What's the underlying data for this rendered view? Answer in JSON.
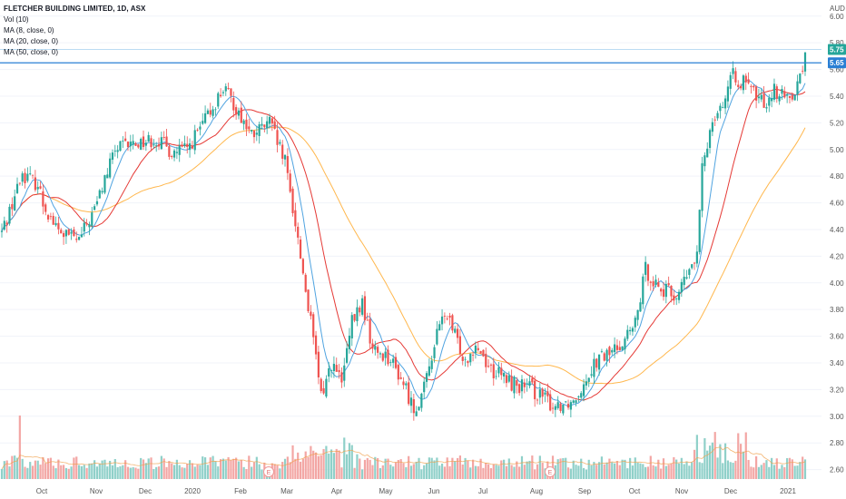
{
  "legend": {
    "title": "FLETCHER BUILDING LIMITED, 1D, ASX",
    "volume": "Vol (10)",
    "ma_fast": "MA (8, close, 0)",
    "ma_mid": "MA (20, close, 0)",
    "ma_slow": "MA (50, close, 0)"
  },
  "currency": "AUD",
  "last_price_tag": "5.75",
  "prev_price_tag": "5.65",
  "colors": {
    "up": "#26a69a",
    "down": "#ef5350",
    "ma_fast": "#4fa3e0",
    "ma_mid": "#e53935",
    "ma_slow": "#ffb74d",
    "vol_up": "#8fd0c9",
    "vol_down": "#f3a6a4",
    "price_line": "#2a7fd4",
    "grid": "#f0f3fa"
  },
  "event_marker": "E",
  "chart_data": {
    "type": "candlestick",
    "y_axis": {
      "ticks": [
        "6.00",
        "5.80",
        "5.60",
        "5.40",
        "5.20",
        "5.00",
        "4.80",
        "4.60",
        "4.40",
        "4.20",
        "4.00",
        "3.80",
        "3.60",
        "3.40",
        "3.20",
        "3.00",
        "2.80",
        "2.60"
      ],
      "range": [
        2.57,
        6.08
      ]
    },
    "x_axis": {
      "ticks": [
        "Oct",
        "Nov",
        "Dec",
        "2020",
        "Feb",
        "Mar",
        "Apr",
        "May",
        "Jun",
        "Jul",
        "Aug",
        "Sep",
        "Oct",
        "Nov",
        "Dec",
        "2021"
      ]
    },
    "anchors": [
      [
        0,
        4.38
      ],
      [
        8,
        4.82
      ],
      [
        14,
        4.74
      ],
      [
        16,
        4.6
      ],
      [
        22,
        4.38
      ],
      [
        30,
        4.32
      ],
      [
        36,
        4.55
      ],
      [
        44,
        5.0
      ],
      [
        52,
        5.05
      ],
      [
        60,
        5.08
      ],
      [
        66,
        4.98
      ],
      [
        72,
        5.0
      ],
      [
        80,
        5.25
      ],
      [
        86,
        5.46
      ],
      [
        92,
        5.28
      ],
      [
        97,
        5.1
      ],
      [
        104,
        5.2
      ],
      [
        110,
        4.9
      ],
      [
        114,
        4.45
      ],
      [
        120,
        3.7
      ],
      [
        124,
        3.15
      ],
      [
        128,
        3.4
      ],
      [
        132,
        3.25
      ],
      [
        136,
        3.7
      ],
      [
        140,
        3.85
      ],
      [
        144,
        3.5
      ],
      [
        150,
        3.45
      ],
      [
        156,
        3.25
      ],
      [
        160,
        3.05
      ],
      [
        164,
        3.2
      ],
      [
        168,
        3.55
      ],
      [
        172,
        3.78
      ],
      [
        176,
        3.6
      ],
      [
        180,
        3.42
      ],
      [
        184,
        3.55
      ],
      [
        190,
        3.35
      ],
      [
        198,
        3.25
      ],
      [
        206,
        3.2
      ],
      [
        214,
        3.08
      ],
      [
        222,
        3.12
      ],
      [
        230,
        3.4
      ],
      [
        238,
        3.5
      ],
      [
        246,
        3.68
      ],
      [
        250,
        4.1
      ],
      [
        256,
        3.95
      ],
      [
        262,
        3.9
      ],
      [
        266,
        4.05
      ],
      [
        270,
        4.2
      ],
      [
        272,
        4.85
      ],
      [
        276,
        5.25
      ],
      [
        280,
        5.35
      ],
      [
        284,
        5.55
      ],
      [
        288,
        5.5
      ],
      [
        292,
        5.42
      ],
      [
        296,
        5.35
      ],
      [
        300,
        5.45
      ],
      [
        304,
        5.38
      ],
      [
        308,
        5.45
      ],
      [
        311,
        5.6
      ],
      [
        312,
        5.75
      ]
    ],
    "volume": {
      "label": "Vol (10)",
      "range": [
        0,
        3.2
      ]
    }
  }
}
